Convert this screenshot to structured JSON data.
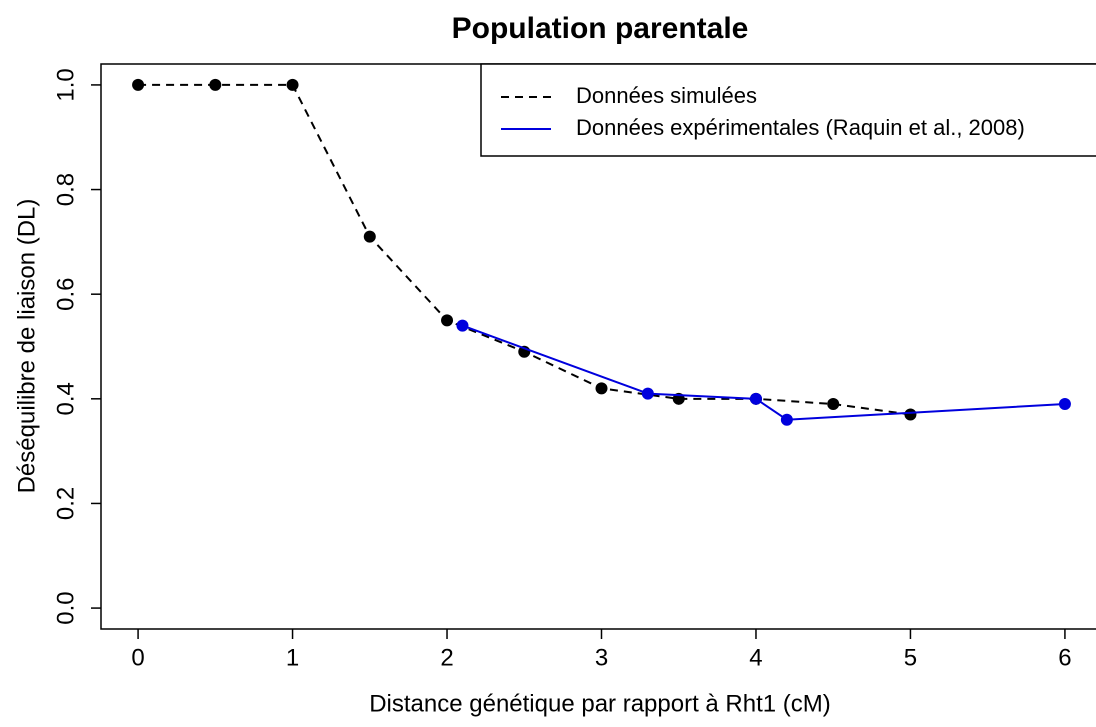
{
  "chart_data": {
    "type": "line",
    "title": "Population parentale",
    "xlabel": "Distance génétique par rapport à Rht1 (cM)",
    "ylabel": "Déséquilibre de liaison (DL)",
    "xlim": [
      -0.24,
      6.24
    ],
    "ylim": [
      -0.04,
      1.04
    ],
    "xticks": [
      0,
      1,
      2,
      3,
      4,
      5,
      6
    ],
    "yticks": [
      {
        "value": 0,
        "label": "0.0"
      },
      {
        "value": 0.2,
        "label": "0.2"
      },
      {
        "value": 0.4,
        "label": "0.4"
      },
      {
        "value": 0.6,
        "label": "0.6"
      },
      {
        "value": 0.8,
        "label": "0.8"
      },
      {
        "value": 1,
        "label": "1.0"
      }
    ],
    "legend": "top-right",
    "series": [
      {
        "name": "Données simulées",
        "color": "#000000",
        "dashed": true,
        "x": [
          0,
          0.5,
          1,
          1.5,
          2,
          2.5,
          3,
          3.5,
          4,
          4.5,
          5
        ],
        "values": [
          1,
          1,
          1,
          0.71,
          0.55,
          0.49,
          0.42,
          0.4,
          0.4,
          0.39,
          0.37
        ]
      },
      {
        "name": "Données expérimentales (Raquin et al., 2008)",
        "color": "#0000dd",
        "dashed": false,
        "x": [
          2.1,
          3.3,
          4.0,
          4.2,
          6.0
        ],
        "values": [
          0.54,
          0.41,
          0.4,
          0.36,
          0.39
        ]
      }
    ]
  }
}
